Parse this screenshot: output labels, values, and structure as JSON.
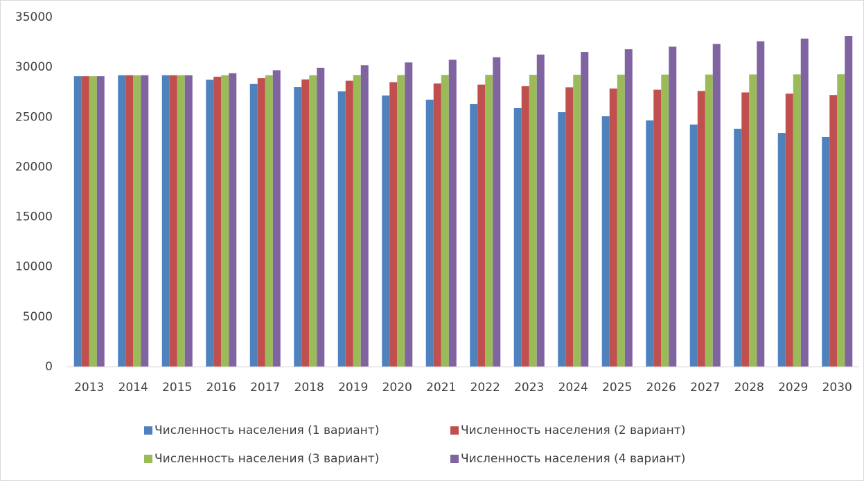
{
  "chart_data": {
    "type": "bar",
    "categories": [
      "2013",
      "2014",
      "2015",
      "2016",
      "2017",
      "2018",
      "2019",
      "2020",
      "2021",
      "2022",
      "2023",
      "2024",
      "2025",
      "2026",
      "2027",
      "2028",
      "2029",
      "2030"
    ],
    "series": [
      {
        "name": "Численность населения (1 вариант)",
        "color": "#4f81bd",
        "values": [
          29100,
          29200,
          29200,
          28750,
          28340,
          28000,
          27580,
          27170,
          26750,
          26330,
          25920,
          25500,
          25090,
          24670,
          24260,
          23840,
          23420,
          23010
        ]
      },
      {
        "name": "Численность населения (2 вариант)",
        "color": "#c0504d",
        "values": [
          29100,
          29200,
          29200,
          29050,
          28900,
          28780,
          28650,
          28500,
          28380,
          28250,
          28120,
          27980,
          27870,
          27750,
          27620,
          27480,
          27350,
          27220
        ]
      },
      {
        "name": "Численность населения (3 вариант)",
        "color": "#9bbb59",
        "values": [
          29100,
          29200,
          29200,
          29200,
          29200,
          29200,
          29220,
          29220,
          29230,
          29240,
          29240,
          29250,
          29260,
          29260,
          29270,
          29280,
          29290,
          29300
        ]
      },
      {
        "name": "Численность населения (4 вариант)",
        "color": "#8064a2",
        "values": [
          29100,
          29200,
          29200,
          29400,
          29700,
          29950,
          30200,
          30480,
          30750,
          31000,
          31270,
          31530,
          31800,
          32060,
          32330,
          32600,
          32870,
          33130
        ]
      }
    ],
    "ylim": [
      0,
      35000
    ],
    "yticks": [
      0,
      5000,
      10000,
      15000,
      20000,
      25000,
      30000,
      35000
    ],
    "grid": false,
    "legend": "bottom"
  }
}
